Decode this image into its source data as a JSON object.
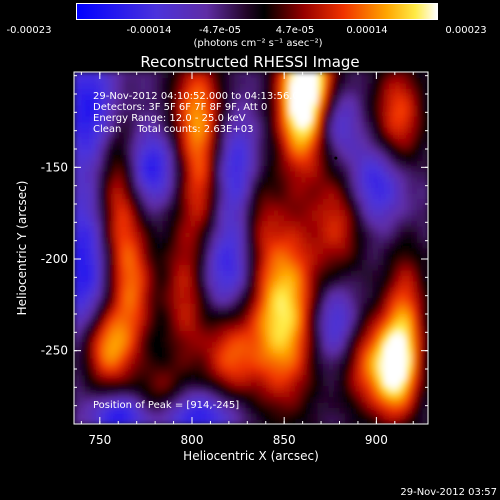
{
  "colorbar": {
    "tick_labels": [
      "-0.00023",
      "-0.00014",
      "-4.7e-05",
      "4.7e-05",
      "0.00014",
      "0.00023"
    ],
    "units": "(photons cm⁻² s⁻¹ asec⁻²)"
  },
  "annotations": {
    "time_range": "29-Nov-2012 04:10:52.000 to 04:13:56.000",
    "detectors": "Detectors: 3F 5F 6F 7F 8F 9F, Att 0",
    "energy_range": "Energy Range: 12.0 - 25.0 keV",
    "method": "Clean     Total counts: 2.63E+03",
    "peak": "Position of Peak = [914,-245]"
  },
  "footer": {
    "timestamp": "29-Nov-2012 03:57"
  },
  "chart_data": {
    "type": "heatmap",
    "title": "Reconstructed RHESSI Image",
    "xlabel": "Heliocentric X (arcsec)",
    "ylabel": "Heliocentric Y (arcsec)",
    "xlim": [
      736,
      928
    ],
    "ylim": [
      -290,
      -98
    ],
    "x_ticks": [
      750,
      800,
      850,
      900
    ],
    "y_ticks": [
      -250,
      -200,
      -150
    ],
    "colorscale": "IDL red-temperature with blue negatives",
    "value_range": [
      -0.00023,
      0.00023
    ],
    "peak_position": [
      914,
      -245
    ]
  }
}
